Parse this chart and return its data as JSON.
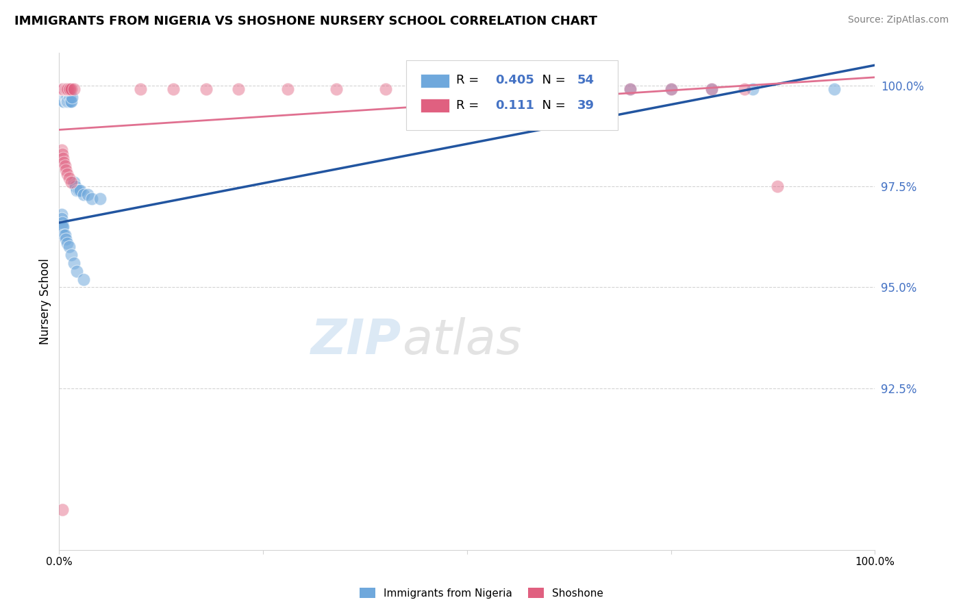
{
  "title": "IMMIGRANTS FROM NIGERIA VS SHOSHONE NURSERY SCHOOL CORRELATION CHART",
  "source": "Source: ZipAtlas.com",
  "ylabel": "Nursery School",
  "legend_label1": "Immigrants from Nigeria",
  "legend_label2": "Shoshone",
  "r1": 0.405,
  "n1": 54,
  "r2": 0.111,
  "n2": 39,
  "color_blue": "#6fa8dc",
  "color_pink": "#e06080",
  "color_blue_line": "#2255a0",
  "color_pink_line": "#e07090",
  "watermark_zip": "ZIP",
  "watermark_atlas": "atlas",
  "ytick_positions": [
    0.925,
    0.95,
    0.975,
    1.0
  ],
  "ytick_labels": [
    "92.5%",
    "95.0%",
    "97.5%",
    "100.0%"
  ],
  "ymin": 0.885,
  "ymax": 1.008,
  "xmin": 0.0,
  "xmax": 1.0,
  "blue_line_x": [
    0.0,
    1.0
  ],
  "blue_line_y": [
    0.966,
    1.005
  ],
  "pink_line_x": [
    0.0,
    1.0
  ],
  "pink_line_y": [
    0.989,
    1.002
  ],
  "blue_pts_x": [
    0.003,
    0.003,
    0.004,
    0.004,
    0.004,
    0.005,
    0.005,
    0.005,
    0.005,
    0.006,
    0.006,
    0.006,
    0.007,
    0.007,
    0.008,
    0.008,
    0.009,
    0.009,
    0.01,
    0.01,
    0.011,
    0.012,
    0.013,
    0.014,
    0.015,
    0.016,
    0.018,
    0.02,
    0.022,
    0.024,
    0.026,
    0.03,
    0.035,
    0.04,
    0.05,
    0.003,
    0.003,
    0.004,
    0.004,
    0.005,
    0.006,
    0.007,
    0.008,
    0.01,
    0.012,
    0.015,
    0.018,
    0.022,
    0.03,
    0.7,
    0.75,
    0.8,
    0.85,
    0.95
  ],
  "blue_pts_y": [
    0.998,
    0.997,
    0.999,
    0.998,
    0.997,
    0.999,
    0.998,
    0.997,
    0.996,
    0.998,
    0.997,
    0.996,
    0.998,
    0.997,
    0.998,
    0.997,
    0.997,
    0.996,
    0.997,
    0.996,
    0.996,
    0.996,
    0.997,
    0.996,
    0.996,
    0.997,
    0.976,
    0.975,
    0.974,
    0.974,
    0.974,
    0.973,
    0.973,
    0.972,
    0.972,
    0.968,
    0.967,
    0.966,
    0.965,
    0.965,
    0.963,
    0.963,
    0.962,
    0.961,
    0.96,
    0.958,
    0.956,
    0.954,
    0.952,
    0.999,
    0.999,
    0.999,
    0.999,
    0.999
  ],
  "pink_pts_x": [
    0.003,
    0.004,
    0.005,
    0.006,
    0.007,
    0.008,
    0.009,
    0.01,
    0.011,
    0.012,
    0.013,
    0.015,
    0.018,
    0.003,
    0.004,
    0.005,
    0.006,
    0.007,
    0.008,
    0.01,
    0.012,
    0.015,
    0.1,
    0.14,
    0.18,
    0.22,
    0.28,
    0.34,
    0.4,
    0.5,
    0.55,
    0.6,
    0.65,
    0.7,
    0.75,
    0.8,
    0.84,
    0.88,
    0.004
  ],
  "pink_pts_y": [
    0.999,
    0.999,
    0.999,
    0.999,
    0.999,
    0.999,
    0.999,
    0.999,
    0.999,
    0.999,
    0.999,
    0.999,
    0.999,
    0.984,
    0.983,
    0.982,
    0.981,
    0.98,
    0.979,
    0.978,
    0.977,
    0.976,
    0.999,
    0.999,
    0.999,
    0.999,
    0.999,
    0.999,
    0.999,
    0.999,
    0.999,
    0.999,
    0.999,
    0.999,
    0.999,
    0.999,
    0.999,
    0.975,
    0.895
  ]
}
